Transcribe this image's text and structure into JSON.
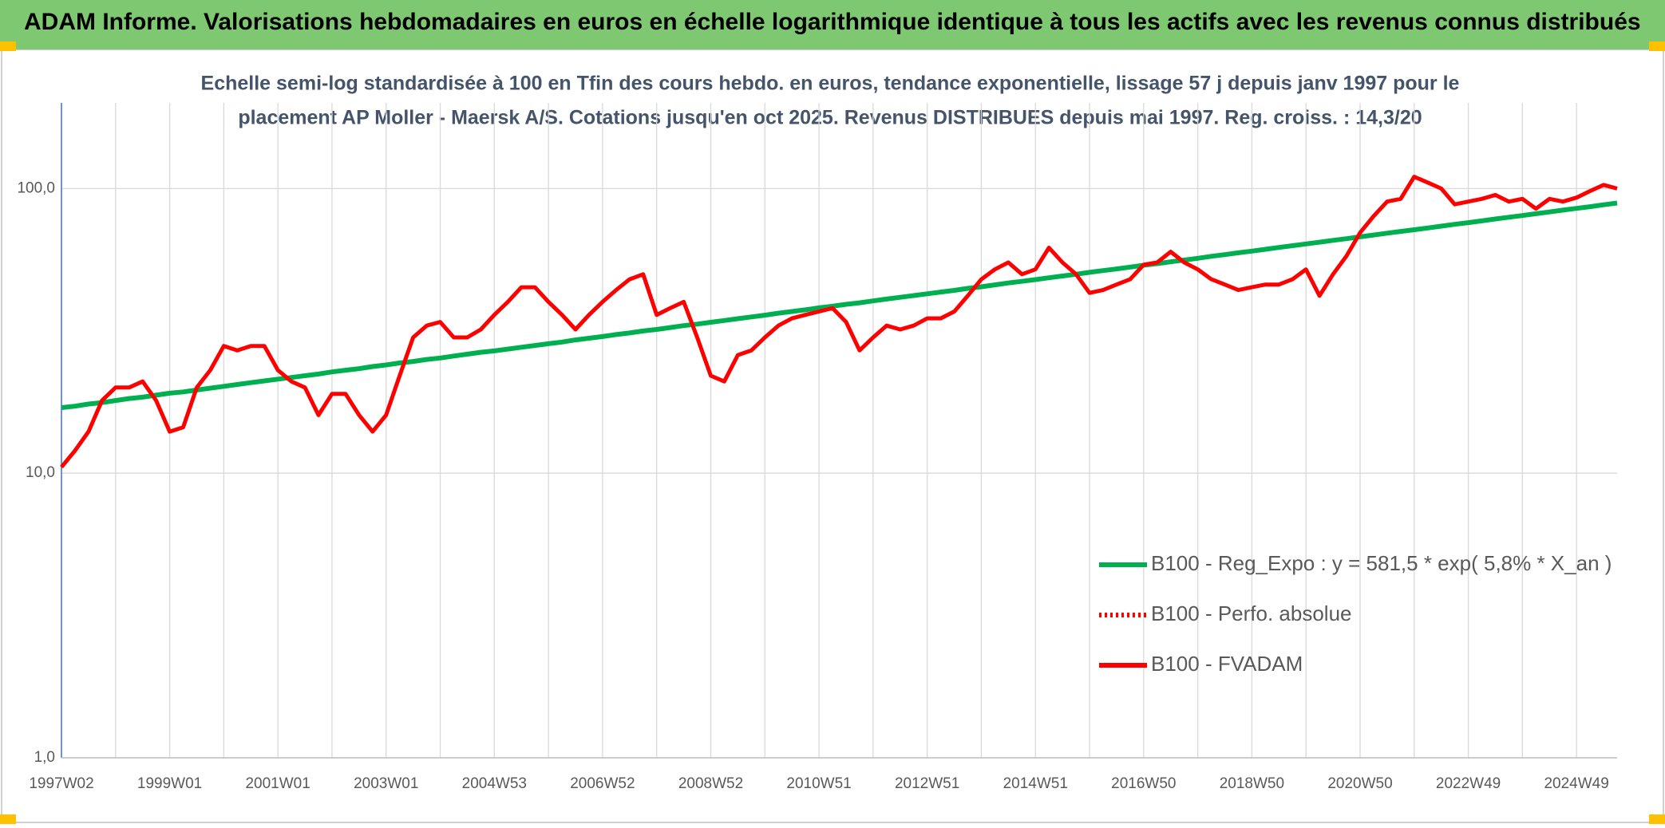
{
  "chart_data": {
    "type": "line",
    "title": "ADAM Informe. Valorisations hebdomadaires en euros en échelle logarithmique identique à tous les actifs avec les revenus connus distribués",
    "subtitle": [
      "Echelle semi-log standardisée à 100 en Tfin des cours hebdo. en euros, tendance exponentielle, lissage 57 j depuis janv 1997 pour le",
      "placement AP Moller - Maersk A/S. Cotations jusqu'en oct 2025. Revenus DISTRIBUES depuis mai 1997. Reg. croiss. : 14,3/20"
    ],
    "log_scale": true,
    "grid": true,
    "legend": "right",
    "ylim": [
      1,
      200
    ],
    "yticks": [
      {
        "value": 1,
        "label": "1,0"
      },
      {
        "value": 10,
        "label": "10,0"
      },
      {
        "value": 100,
        "label": "100,0"
      }
    ],
    "categories": [
      "1997W02",
      null,
      null,
      null,
      null,
      null,
      null,
      null,
      "1999W01",
      null,
      null,
      null,
      null,
      null,
      null,
      null,
      "2001W01",
      null,
      null,
      null,
      null,
      null,
      null,
      null,
      "2003W01",
      null,
      null,
      null,
      null,
      null,
      null,
      null,
      "2004W53",
      null,
      null,
      null,
      null,
      null,
      null,
      null,
      "2006W52",
      null,
      null,
      null,
      null,
      null,
      null,
      null,
      "2008W52",
      null,
      null,
      null,
      null,
      null,
      null,
      null,
      "2010W51",
      null,
      null,
      null,
      null,
      null,
      null,
      null,
      "2012W51",
      null,
      null,
      null,
      null,
      null,
      null,
      null,
      "2014W51",
      null,
      null,
      null,
      null,
      null,
      null,
      null,
      "2016W50",
      null,
      null,
      null,
      null,
      null,
      null,
      null,
      "2018W50",
      null,
      null,
      null,
      null,
      null,
      null,
      null,
      "2020W50",
      null,
      null,
      null,
      null,
      null,
      null,
      null,
      "2022W49",
      null,
      null,
      null,
      null,
      null,
      null,
      null,
      "2024W49",
      null,
      null,
      null
    ],
    "series": [
      {
        "name": "B100 - Reg_Expo : y = 581,5 * exp( 5,8% *  X_an )",
        "color": "#00b050",
        "style": "solid",
        "values": [
          17.0,
          17.2,
          17.5,
          17.7,
          18.0,
          18.3,
          18.5,
          18.8,
          19.1,
          19.3,
          19.6,
          19.9,
          20.2,
          20.5,
          20.8,
          21.1,
          21.4,
          21.7,
          22.0,
          22.3,
          22.7,
          23.0,
          23.3,
          23.7,
          24.0,
          24.4,
          24.7,
          25.1,
          25.4,
          25.8,
          26.2,
          26.6,
          26.9,
          27.3,
          27.7,
          28.1,
          28.5,
          28.9,
          29.4,
          29.8,
          30.2,
          30.7,
          31.1,
          31.6,
          32.0,
          32.5,
          33.0,
          33.4,
          33.9,
          34.4,
          34.9,
          35.4,
          35.9,
          36.5,
          37.0,
          37.5,
          38.1,
          38.6,
          39.2,
          39.7,
          40.3,
          40.9,
          41.5,
          42.1,
          42.7,
          43.3,
          43.9,
          44.6,
          45.2,
          45.9,
          46.6,
          47.2,
          47.9,
          48.6,
          49.3,
          50.0,
          50.8,
          51.5,
          52.2,
          53.0,
          53.8,
          54.5,
          55.3,
          56.1,
          56.9,
          57.8,
          58.6,
          59.5,
          60.3,
          61.2,
          62.1,
          63.0,
          63.9,
          64.8,
          65.8,
          66.7,
          67.7,
          68.7,
          69.7,
          70.7,
          71.7,
          72.7,
          73.8,
          74.9,
          75.9,
          77.0,
          78.2,
          79.3,
          80.4,
          81.6,
          82.8,
          84.0,
          85.2,
          86.4,
          87.7,
          89.0
        ]
      },
      {
        "name": "B100 - Perfo. absolue",
        "color": "#ff0000",
        "style": "dotted",
        "values": [
          null,
          null,
          null,
          null,
          null,
          null,
          null,
          null,
          null,
          null,
          null,
          null,
          null,
          null,
          null,
          null,
          null,
          null,
          null,
          null,
          null,
          null,
          null,
          null,
          null,
          null,
          null,
          null,
          null,
          null,
          null,
          null,
          null,
          null,
          null,
          null,
          null,
          null,
          null,
          null,
          null,
          null,
          null,
          null,
          null,
          null,
          null,
          null,
          null,
          null,
          null,
          null,
          null,
          null,
          null,
          null,
          null,
          null,
          null,
          null,
          null,
          null,
          null,
          null,
          null,
          null,
          null,
          null,
          null,
          null,
          null,
          null,
          null,
          null,
          null,
          null,
          null,
          null,
          null,
          null,
          null,
          null,
          null,
          null,
          null,
          null,
          null,
          null,
          null,
          null,
          null,
          null,
          null,
          null,
          null,
          null,
          null,
          null,
          null,
          null,
          null,
          null,
          null,
          null,
          null,
          null,
          null,
          null,
          null,
          null,
          null,
          null,
          null,
          null,
          null,
          null
        ]
      },
      {
        "name": "B100 - FVADAM",
        "color": "#ff0000",
        "style": "solid",
        "values": [
          10.5,
          12,
          14,
          18,
          20,
          20,
          21,
          18,
          14,
          14.5,
          20,
          23,
          28,
          27,
          28,
          28,
          23,
          21,
          20,
          16,
          19,
          19,
          16,
          14,
          16,
          22,
          30,
          33,
          34,
          30,
          30,
          32,
          36,
          40,
          45,
          45,
          40,
          36,
          32,
          36,
          40,
          44,
          48,
          50,
          36,
          38,
          40,
          30,
          22,
          21,
          26,
          27,
          30,
          33,
          35,
          36,
          37,
          38,
          34,
          27,
          30,
          33,
          32,
          33,
          35,
          35,
          37,
          42,
          48,
          52,
          55,
          50,
          52,
          62,
          55,
          50,
          43,
          44,
          46,
          48,
          54,
          55,
          60,
          55,
          52,
          48,
          46,
          44,
          45,
          46,
          46,
          48,
          52,
          42,
          50,
          58,
          70,
          80,
          90,
          92,
          110,
          105,
          100,
          88,
          90,
          92,
          95,
          90,
          92,
          85,
          92,
          90,
          93,
          98,
          103,
          100
        ]
      }
    ]
  }
}
